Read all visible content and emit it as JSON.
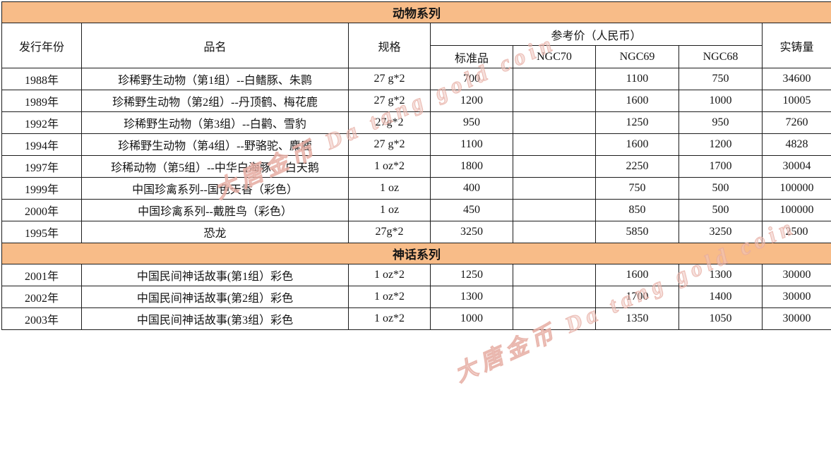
{
  "colors": {
    "section_bg": "#F8BC88",
    "border": "#1c1c1c",
    "text": "#141414",
    "watermark_pink": "#EEC4BD",
    "page_bg": "#FFFFFF"
  },
  "columns": {
    "year": "发行年份",
    "name": "品名",
    "spec": "规格",
    "price_group": "参考价（人民币）",
    "price_sub": [
      "标准品",
      "NGC70",
      "NGC69",
      "NGC68"
    ],
    "mintage": "实铸量"
  },
  "row_keys": [
    "year",
    "name",
    "spec",
    "std",
    "ngc70",
    "ngc69",
    "ngc68",
    "mintage"
  ],
  "sections": [
    {
      "title": "动物系列",
      "rows": [
        {
          "year": "1988年",
          "name": "珍稀野生动物（第1组）--白鳍豚、朱鹮",
          "spec": "27 g*2",
          "std": "700",
          "ngc70": "",
          "ngc69": "1100",
          "ngc68": "750",
          "mintage": "34600"
        },
        {
          "year": "1989年",
          "name": "珍稀野生动物（第2组）--丹顶鹤、梅花鹿",
          "spec": "27 g*2",
          "std": "1200",
          "ngc70": "",
          "ngc69": "1600",
          "ngc68": "1000",
          "mintage": "10005"
        },
        {
          "year": "1992年",
          "name": "珍稀野生动物（第3组）--白鹳、雪豹",
          "spec": "27g*2",
          "std": "950",
          "ngc70": "",
          "ngc69": "1250",
          "ngc68": "950",
          "mintage": "7260"
        },
        {
          "year": "1994年",
          "name": "珍稀野生动物（第4组）--野骆驼、麋鹿",
          "spec": "27 g*2",
          "std": "1100",
          "ngc70": "",
          "ngc69": "1600",
          "ngc68": "1200",
          "mintage": "4828"
        },
        {
          "year": "1997年",
          "name": "珍稀动物（第5组）--中华白海豚、 白天鹅",
          "spec": "1 oz*2",
          "std": "1800",
          "ngc70": "",
          "ngc69": "2250",
          "ngc68": "1700",
          "mintage": "30004"
        },
        {
          "year": "1999年",
          "name": "中国珍禽系列--国色天香（彩色）",
          "spec": "1 oz",
          "std": "400",
          "ngc70": "",
          "ngc69": "750",
          "ngc68": "500",
          "mintage": "100000"
        },
        {
          "year": "2000年",
          "name": "中国珍禽系列--戴胜鸟（彩色）",
          "spec": "1 oz",
          "std": "450",
          "ngc70": "",
          "ngc69": "850",
          "ngc68": "500",
          "mintage": "100000"
        },
        {
          "year": "1995年",
          "name": "恐龙",
          "spec": "27g*2",
          "std": "3250",
          "ngc70": "",
          "ngc69": "5850",
          "ngc68": "3250",
          "mintage": "2500"
        }
      ]
    },
    {
      "title": "神话系列",
      "rows": [
        {
          "year": "2001年",
          "name": "中国民间神话故事(第1组）彩色",
          "spec": "1 oz*2",
          "std": "1250",
          "ngc70": "",
          "ngc69": "1600",
          "ngc68": "1300",
          "mintage": "30000"
        },
        {
          "year": "2002年",
          "name": "中国民间神话故事(第2组）彩色",
          "spec": "1 oz*2",
          "std": "1300",
          "ngc70": "",
          "ngc69": "1700",
          "ngc68": "1400",
          "mintage": "30000"
        },
        {
          "year": "2003年",
          "name": "中国民间神话故事(第3组）彩色",
          "spec": "1 oz*2",
          "std": "1000",
          "ngc70": "",
          "ngc69": "1350",
          "ngc68": "1050",
          "mintage": "30000"
        }
      ]
    }
  ],
  "watermarks": [
    {
      "text": "大唐金币 Da tang gold coin"
    },
    {
      "text": "大唐金币 Da tang gold coin"
    }
  ]
}
